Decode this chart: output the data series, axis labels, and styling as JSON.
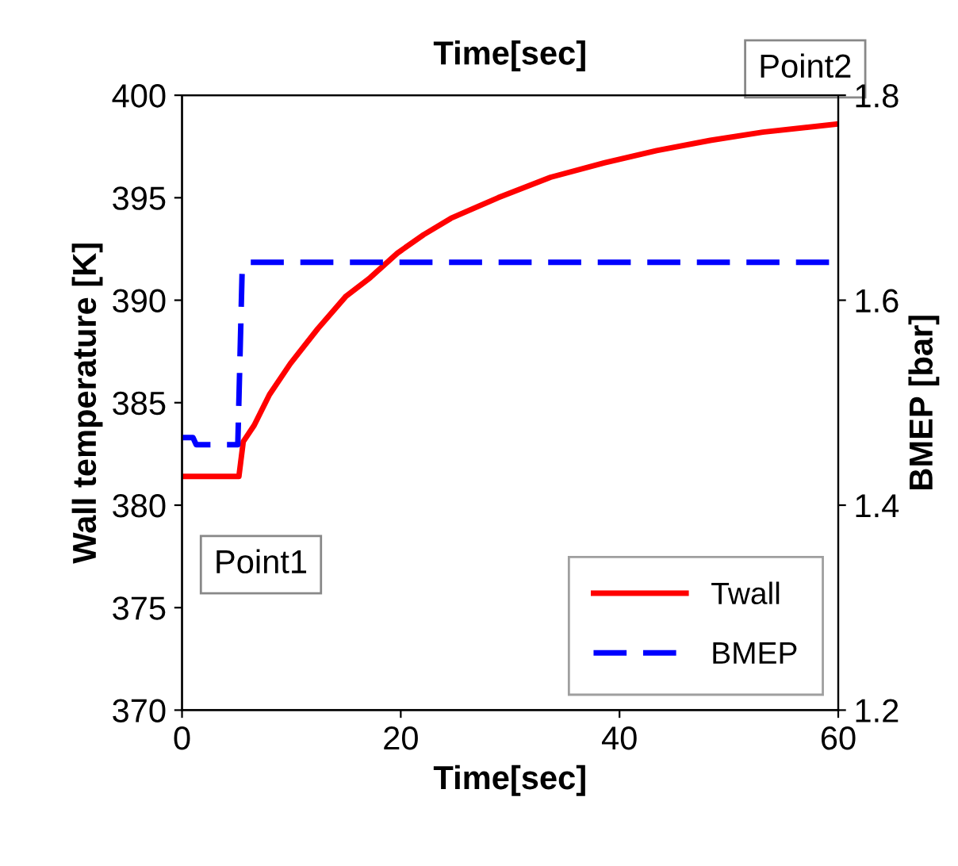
{
  "chart_data": {
    "type": "line",
    "title": "Time[sec]",
    "xlabel": "Time[sec]",
    "ylabel": "Wall temperature [K]",
    "y2label": "BMEP [bar]",
    "xlim": [
      0,
      60
    ],
    "xticks": [
      0,
      20,
      40,
      60
    ],
    "ylim": [
      370,
      400
    ],
    "yticks": [
      370,
      375,
      380,
      385,
      390,
      395,
      400
    ],
    "y2lim": [
      1.2,
      1.8
    ],
    "y2ticks": [
      1.2,
      1.4,
      1.6,
      1.8
    ],
    "series": [
      {
        "name": "Twall",
        "color": "#ff0000",
        "line_style": "solid",
        "x": [
          0,
          5.2,
          5.6,
          6.6,
          8.0,
          9.9,
          12.4,
          15.0,
          17.2,
          19.7,
          22.1,
          24.6,
          28.9,
          33.7,
          38.6,
          43.4,
          48.3,
          53.1,
          59.9
        ],
        "values": [
          381.4,
          381.4,
          383.1,
          383.9,
          385.4,
          386.9,
          388.6,
          390.2,
          391.1,
          392.3,
          393.2,
          394.0,
          395.0,
          396.0,
          396.7,
          397.3,
          397.8,
          398.2,
          398.6
        ]
      },
      {
        "name": "BMEP",
        "color": "#0000ff",
        "line_style": "dashed",
        "axis": "y2",
        "x": [
          0,
          1.0,
          1.3,
          5.1,
          5.5,
          6.0,
          60
        ],
        "values": [
          1.466,
          1.466,
          1.459,
          1.459,
          1.63,
          1.637,
          1.637
        ]
      }
    ],
    "annotations": [
      {
        "text": "Point1",
        "x": 5.2,
        "y": 381.4
      },
      {
        "text": "Point2",
        "x": 60,
        "y": 398.6
      }
    ],
    "legend": "bottom right",
    "grid": false,
    "marker": "none"
  }
}
